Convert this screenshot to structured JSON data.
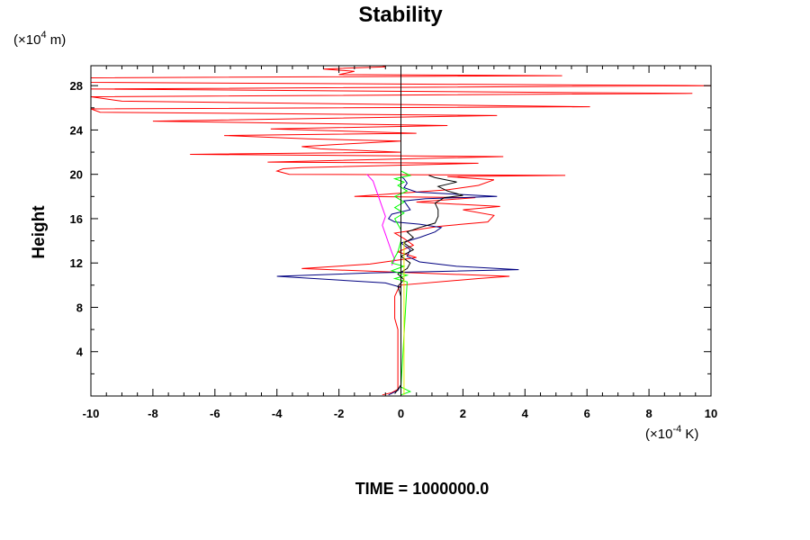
{
  "chart_data": {
    "type": "line",
    "title": "Stability",
    "ylabel": "Height",
    "y_unit_prefix": "(×10",
    "y_unit_exp": "4",
    "y_unit_suffix": " m)",
    "x_unit_prefix": "(×10",
    "x_unit_exp": "-4",
    "x_unit_suffix": " K)",
    "footer": "TIME = 1000000.0",
    "xlim": [
      -10,
      10
    ],
    "ylim": [
      0,
      29.8
    ],
    "x_ticks": [
      -10,
      -8,
      -6,
      -4,
      -2,
      0,
      2,
      4,
      6,
      8,
      10
    ],
    "y_ticks": [
      4,
      8,
      12,
      16,
      20,
      24,
      28
    ],
    "grid": false,
    "vertical_zero_line": true,
    "series": [
      {
        "color": "#ff0000",
        "points": [
          [
            -0.6,
            0.1
          ],
          [
            -0.3,
            0.3
          ],
          [
            -0.1,
            0.6
          ],
          [
            -0.1,
            1
          ],
          [
            -0.1,
            2
          ],
          [
            -0.1,
            3
          ],
          [
            -0.1,
            4
          ],
          [
            -0.1,
            5
          ],
          [
            -0.1,
            6
          ],
          [
            -0.2,
            7
          ],
          [
            -0.2,
            8
          ],
          [
            -0.2,
            9
          ],
          [
            -0.1,
            9.6
          ],
          [
            0,
            10
          ],
          [
            2.5,
            10.6
          ],
          [
            3.5,
            10.8
          ],
          [
            0.5,
            11.1
          ],
          [
            -3.2,
            11.5
          ],
          [
            -1,
            11.9
          ],
          [
            0.5,
            12.5
          ],
          [
            -0.1,
            13
          ],
          [
            0.4,
            13.6
          ],
          [
            0.1,
            14.2
          ],
          [
            -0.2,
            14.7
          ],
          [
            1.2,
            15.3
          ],
          [
            2.8,
            15.7
          ],
          [
            3,
            16.3
          ],
          [
            2,
            16.8
          ],
          [
            3.2,
            17.1
          ],
          [
            0.5,
            17.5
          ],
          [
            2.4,
            17.9
          ],
          [
            -1.5,
            18
          ],
          [
            -0.5,
            18.2
          ],
          [
            1.5,
            18.6
          ],
          [
            2.5,
            19
          ],
          [
            3,
            19.5
          ],
          [
            1.5,
            19.8
          ],
          [
            5.3,
            19.9
          ],
          [
            -3.6,
            20
          ],
          [
            -4,
            20.3
          ],
          [
            -3.8,
            20.5
          ],
          [
            -3.2,
            20.6
          ],
          [
            2.5,
            21
          ],
          [
            -4.3,
            21.1
          ],
          [
            3.3,
            21.6
          ],
          [
            -6.8,
            21.8
          ],
          [
            0,
            22
          ],
          [
            -2.6,
            22.3
          ],
          [
            -3.2,
            22.5
          ],
          [
            -2,
            22.7
          ],
          [
            0,
            23
          ],
          [
            -3,
            23.2
          ],
          [
            -5.7,
            23.5
          ],
          [
            0.5,
            23.7
          ],
          [
            -4.2,
            24.1
          ],
          [
            1.5,
            24.4
          ],
          [
            -8,
            24.8
          ],
          [
            3.1,
            25.3
          ],
          [
            -9.7,
            25.6
          ],
          [
            -10,
            25.9
          ],
          [
            6.1,
            26.1
          ],
          [
            -9,
            26.6
          ],
          [
            -10,
            27
          ],
          [
            9.4,
            27.3
          ],
          [
            -10,
            27.7
          ],
          [
            10,
            28
          ],
          [
            -10,
            28.3
          ],
          [
            -10,
            28.7
          ],
          [
            5.2,
            28.9
          ],
          [
            -2,
            29
          ],
          [
            -1.5,
            29.3
          ],
          [
            -2.5,
            29.5
          ],
          [
            -0.5,
            29.7
          ],
          [
            -0.6,
            29.8
          ]
        ]
      },
      {
        "color": "#000080",
        "points": [
          [
            -0.4,
            0.1
          ],
          [
            -0.1,
            0.5
          ],
          [
            0,
            1
          ],
          [
            0,
            3
          ],
          [
            0,
            6
          ],
          [
            0,
            9
          ],
          [
            0,
            9.8
          ],
          [
            -0.5,
            10.2
          ],
          [
            -4,
            10.8
          ],
          [
            -1,
            11.1
          ],
          [
            0.5,
            11.2
          ],
          [
            3.8,
            11.4
          ],
          [
            1.8,
            11.7
          ],
          [
            0.6,
            12.1
          ],
          [
            0.2,
            12.6
          ],
          [
            0.3,
            13.2
          ],
          [
            0,
            13.8
          ],
          [
            0.6,
            14.3
          ],
          [
            1.1,
            14.8
          ],
          [
            1.3,
            15.2
          ],
          [
            0.6,
            15.5
          ],
          [
            -0.2,
            15.7
          ],
          [
            -0.4,
            16
          ],
          [
            -0.3,
            16.4
          ],
          [
            0.3,
            16.8
          ],
          [
            0.2,
            17.2
          ],
          [
            0.1,
            17.6
          ],
          [
            0.8,
            17.8
          ],
          [
            3.1,
            18
          ],
          [
            1.8,
            18.2
          ],
          [
            0.5,
            18.4
          ],
          [
            0.1,
            18.8
          ],
          [
            0.2,
            19.2
          ],
          [
            0.1,
            19.6
          ],
          [
            0,
            19.8
          ]
        ]
      },
      {
        "color": "#000000",
        "points": [
          [
            -0.2,
            0.2
          ],
          [
            0,
            1
          ],
          [
            0,
            5
          ],
          [
            0,
            9
          ],
          [
            -0.1,
            9.9
          ],
          [
            0.1,
            10.5
          ],
          [
            -0.1,
            11
          ],
          [
            0.2,
            11.5
          ],
          [
            0.3,
            12
          ],
          [
            0,
            12.6
          ],
          [
            0.4,
            13.2
          ],
          [
            0.1,
            13.8
          ],
          [
            0.4,
            14.3
          ],
          [
            0.2,
            14.8
          ],
          [
            0.6,
            15.2
          ],
          [
            1.1,
            15.6
          ],
          [
            1.2,
            16.2
          ],
          [
            1.2,
            16.8
          ],
          [
            1.1,
            17.4
          ],
          [
            1.4,
            17.9
          ],
          [
            2,
            18.1
          ],
          [
            1.5,
            18.5
          ],
          [
            1.2,
            18.9
          ],
          [
            1.8,
            19.3
          ],
          [
            1.1,
            19.7
          ],
          [
            0.9,
            19.9
          ]
        ]
      },
      {
        "color": "#ff00ff",
        "points": [
          [
            -1.1,
            20
          ],
          [
            -0.9,
            19.4
          ],
          [
            -0.8,
            18.6
          ],
          [
            -0.7,
            17.8
          ],
          [
            -0.6,
            17
          ],
          [
            -0.5,
            16.2
          ],
          [
            -0.6,
            15.4
          ],
          [
            -0.5,
            14.6
          ],
          [
            -0.4,
            13.8
          ],
          [
            -0.3,
            13
          ],
          [
            -0.2,
            12.3
          ],
          [
            -0.3,
            11.8
          ]
        ]
      },
      {
        "color": "#00ff00",
        "points": [
          [
            0,
            0.1
          ],
          [
            0.3,
            0.4
          ],
          [
            0,
            0.8
          ],
          [
            0.2,
            10.3
          ],
          [
            -0.2,
            10.6
          ],
          [
            0.2,
            10.9
          ],
          [
            -0.3,
            11.3
          ],
          [
            0.1,
            11.7
          ],
          [
            -0.3,
            12
          ],
          [
            -0.1,
            13
          ],
          [
            0,
            14
          ],
          [
            0,
            15
          ],
          [
            -0.2,
            16
          ],
          [
            0.1,
            16.5
          ],
          [
            -0.2,
            17
          ],
          [
            0.1,
            17.5
          ],
          [
            -0.2,
            18
          ],
          [
            0.2,
            18.5
          ],
          [
            -0.1,
            19
          ],
          [
            0.1,
            19.3
          ],
          [
            -0.2,
            19.6
          ],
          [
            0.3,
            19.9
          ],
          [
            0,
            20.3
          ]
        ]
      },
      {
        "color": "#e8e800",
        "points": [
          [
            0.1,
            0.1
          ],
          [
            0.1,
            5
          ],
          [
            0.1,
            10
          ],
          [
            0.1,
            14
          ]
        ]
      }
    ]
  }
}
